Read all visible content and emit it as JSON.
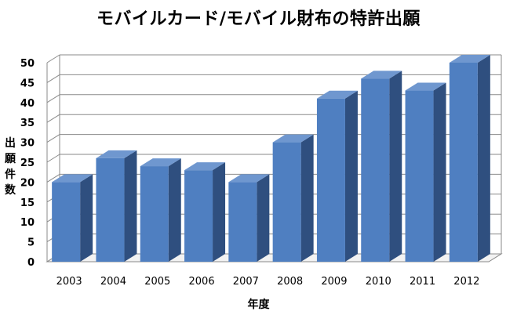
{
  "chart_data": {
    "type": "bar",
    "title": "モバイルカード/モバイル財布の特許出願",
    "xlabel": "年度",
    "ylabel": "出願件数",
    "categories": [
      "2003",
      "2004",
      "2005",
      "2006",
      "2007",
      "2008",
      "2009",
      "2010",
      "2011",
      "2012"
    ],
    "values": [
      20,
      26,
      24,
      23,
      20,
      30,
      41,
      46,
      43,
      50
    ],
    "ylim": [
      0,
      50
    ],
    "yticks": [
      "0",
      "5",
      "10",
      "15",
      "20",
      "25",
      "30",
      "35",
      "40",
      "45",
      "50"
    ],
    "grid": true,
    "style": "3d-column",
    "colors": {
      "bar_front": "#4f7fc1",
      "bar_side": "#2f4f7f",
      "bar_top": "#6f97cf",
      "grid": "#8a8a8a"
    }
  }
}
